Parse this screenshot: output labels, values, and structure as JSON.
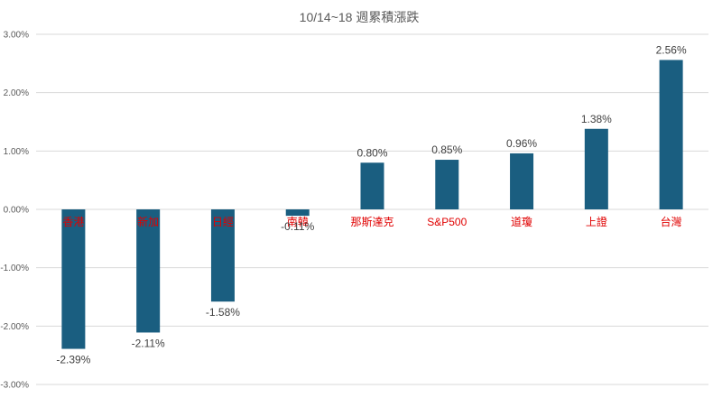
{
  "chart_data": {
    "type": "bar",
    "title": "10/14~18 週累積漲跌",
    "categories": [
      "香港",
      "新加",
      "日經",
      "南韓",
      "那斯達克",
      "S&P500",
      "道瓊",
      "上證",
      "台灣"
    ],
    "values": [
      -2.39,
      -2.11,
      -1.58,
      -0.11,
      0.8,
      0.85,
      0.96,
      1.38,
      2.56
    ],
    "data_labels": [
      "-2.39%",
      "-2.11%",
      "-1.58%",
      "-0.11%",
      "0.80%",
      "0.85%",
      "0.96%",
      "1.38%",
      "2.56%"
    ],
    "ylim": [
      -3.0,
      3.0
    ],
    "ytick_values": [
      3.0,
      2.0,
      1.0,
      0.0,
      -1.0,
      -2.0,
      -3.0
    ],
    "yticks": [
      "3.00%",
      "2.00%",
      "1.00%",
      "0.00%",
      "-1.00%",
      "-2.00%",
      "-3.00%"
    ],
    "grid": true,
    "legend": "none",
    "bar_color": "#1a5e80",
    "label_color": "#e00000",
    "grid_color": "#d9d9d9"
  }
}
